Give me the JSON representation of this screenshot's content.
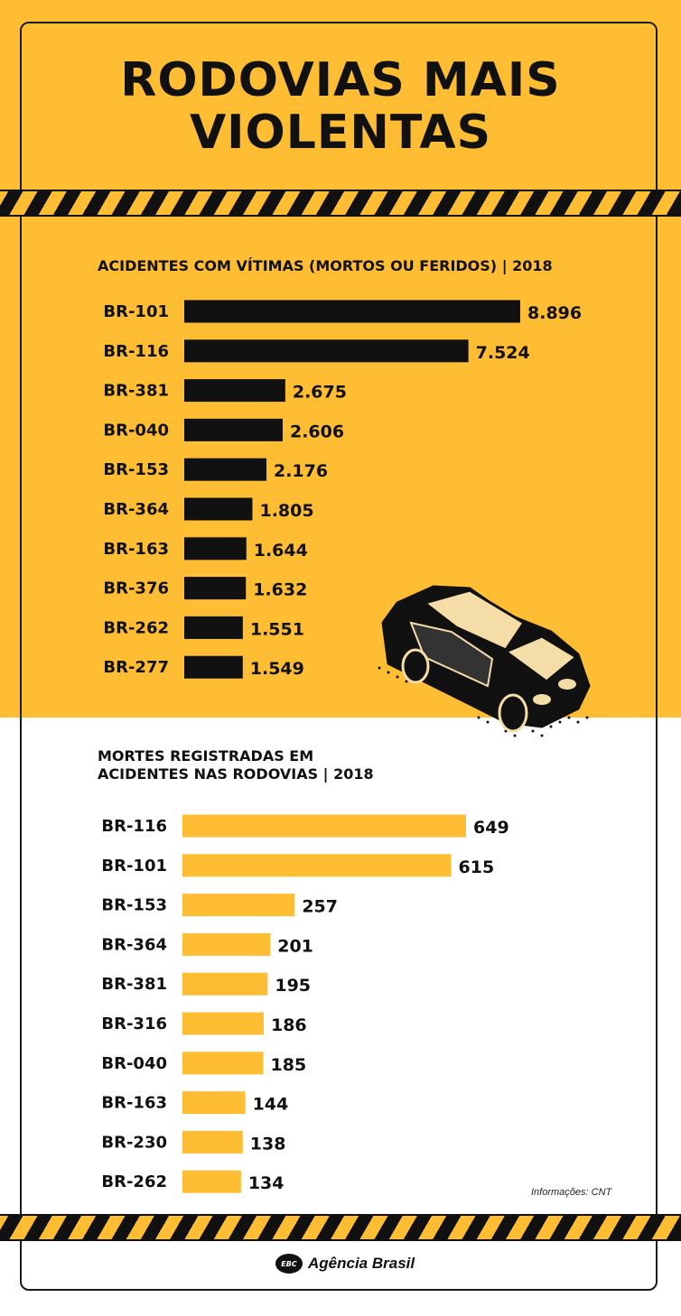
{
  "title_line1": "RODOVIAS MAIS",
  "title_line2": "VIOLENTAS",
  "source": "Informações: CNT",
  "logo": {
    "badge": "EBC",
    "name": "Agência Brasil"
  },
  "colors": {
    "yellow": "#FFBD33",
    "dark": "#111111",
    "white": "#FFFFFF"
  },
  "illustration": "car-icon",
  "chart_data": [
    {
      "type": "bar",
      "orientation": "horizontal",
      "title": "ACIDENTES COM VÍTIMAS (MORTOS OU FERIDOS) | 2018",
      "categories": [
        "BR-101",
        "BR-116",
        "BR-381",
        "BR-040",
        "BR-153",
        "BR-364",
        "BR-163",
        "BR-376",
        "BR-262",
        "BR-277"
      ],
      "values": [
        8896,
        7524,
        2675,
        2606,
        2176,
        1805,
        1644,
        1632,
        1551,
        1549
      ],
      "value_labels": [
        "8.896",
        "7.524",
        "2.675",
        "2.606",
        "2.176",
        "1.805",
        "1.644",
        "1.632",
        "1.551",
        "1.549"
      ],
      "bar_color": "#111111"
    },
    {
      "type": "bar",
      "orientation": "horizontal",
      "title": "MORTES REGISTRADAS EM\nACIDENTES NAS RODOVIAS | 2018",
      "categories": [
        "BR-116",
        "BR-101",
        "BR-153",
        "BR-364",
        "BR-381",
        "BR-316",
        "BR-040",
        "BR-163",
        "BR-230",
        "BR-262"
      ],
      "values": [
        649,
        615,
        257,
        201,
        195,
        186,
        185,
        144,
        138,
        134
      ],
      "value_labels": [
        "649",
        "615",
        "257",
        "201",
        "195",
        "186",
        "185",
        "144",
        "138",
        "134"
      ],
      "bar_color": "#FFBD33"
    }
  ]
}
